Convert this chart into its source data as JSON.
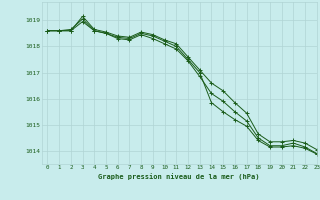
{
  "title": "Graphe pression niveau de la mer (hPa)",
  "bg_color": "#c8ecec",
  "grid_color": "#b0d4d4",
  "line_color": "#1a5c1a",
  "text_color": "#1a5c1a",
  "xlim": [
    -0.5,
    23
  ],
  "ylim": [
    1013.5,
    1019.7
  ],
  "yticks": [
    1014,
    1015,
    1016,
    1017,
    1018,
    1019
  ],
  "xticks": [
    0,
    1,
    2,
    3,
    4,
    5,
    6,
    7,
    8,
    9,
    10,
    11,
    12,
    13,
    14,
    15,
    16,
    17,
    18,
    19,
    20,
    21,
    22,
    23
  ],
  "line1": [
    1018.6,
    1018.6,
    1018.6,
    1019.15,
    1018.65,
    1018.55,
    1018.4,
    1018.35,
    1018.55,
    1018.45,
    1018.25,
    1018.1,
    1017.6,
    1017.1,
    1016.6,
    1016.3,
    1015.85,
    1015.45,
    1014.65,
    1014.35,
    1014.35,
    1014.4,
    1014.3,
    1014.05
  ],
  "line2": [
    1018.6,
    1018.6,
    1018.6,
    1018.95,
    1018.6,
    1018.5,
    1018.3,
    1018.25,
    1018.45,
    1018.3,
    1018.1,
    1017.9,
    1017.45,
    1016.85,
    1016.2,
    1015.9,
    1015.5,
    1015.15,
    1014.5,
    1014.2,
    1014.2,
    1014.3,
    1014.15,
    1013.9
  ],
  "line3": [
    1018.6,
    1018.6,
    1018.65,
    1019.05,
    1018.6,
    1018.5,
    1018.35,
    1018.3,
    1018.5,
    1018.4,
    1018.2,
    1018.0,
    1017.5,
    1017.0,
    1015.85,
    1015.5,
    1015.2,
    1014.95,
    1014.4,
    1014.15,
    1014.15,
    1014.2,
    1014.1,
    1013.88
  ]
}
